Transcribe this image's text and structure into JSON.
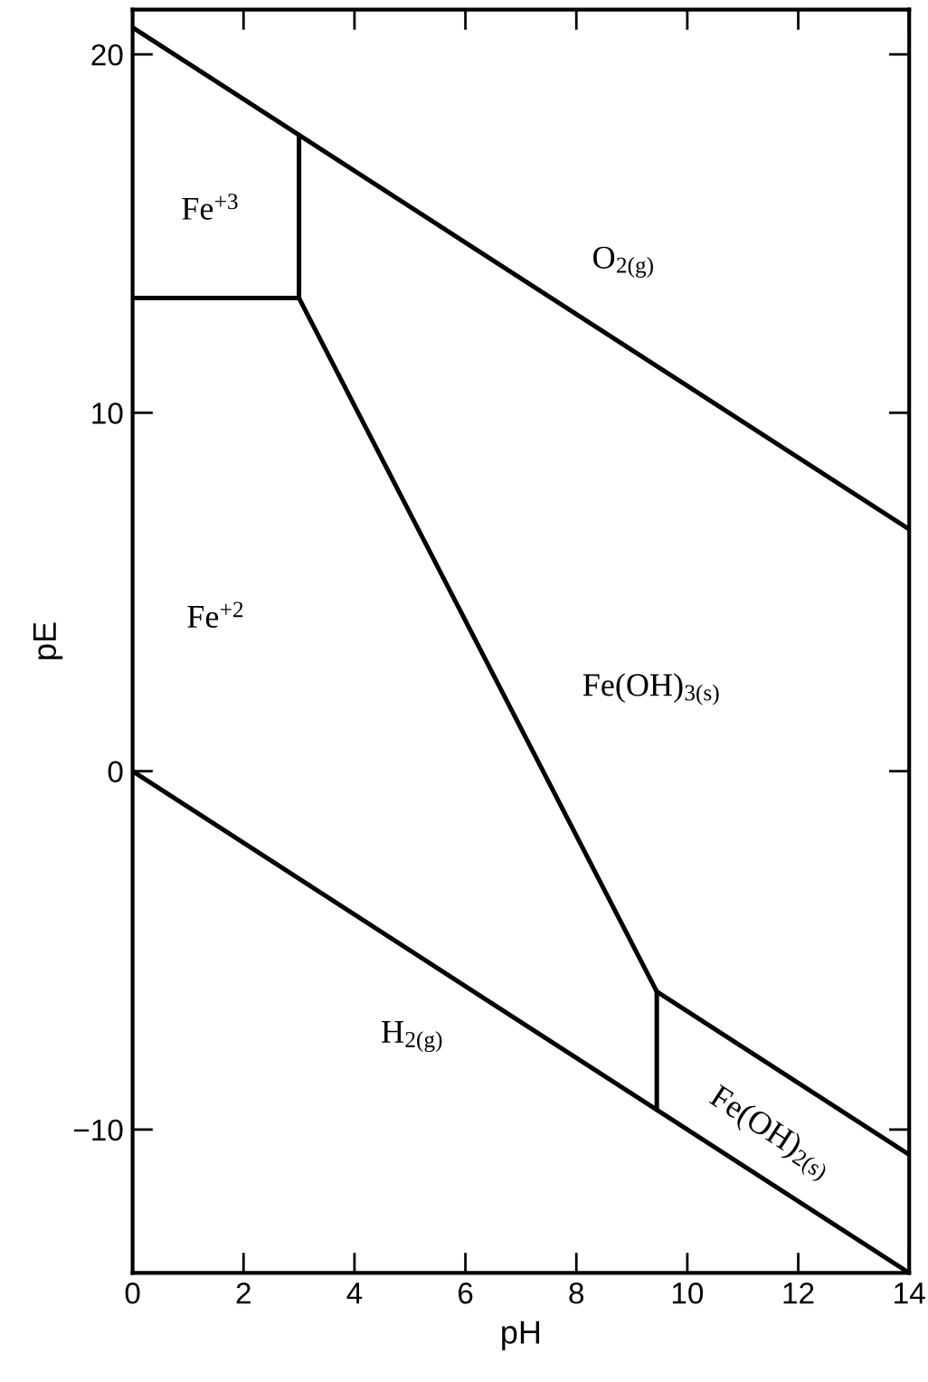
{
  "chart_data": {
    "type": "line",
    "xlabel": "pH",
    "ylabel": "pE",
    "xlim": [
      0,
      14
    ],
    "ylim": [
      -14,
      21.25
    ],
    "xticks": [
      0,
      2,
      4,
      6,
      8,
      10,
      12,
      14
    ],
    "yticks": [
      -10,
      0,
      10,
      20
    ],
    "grid": false,
    "legend": false,
    "series": [
      {
        "color": "#000000",
        "x": [
          0,
          14
        ],
        "values": [
          20.75,
          6.75
        ]
      },
      {
        "color": "#000000",
        "x": [
          0,
          14
        ],
        "values": [
          0,
          -14
        ]
      },
      {
        "color": "#000000",
        "x": [
          0,
          3.0
        ],
        "values": [
          13.2,
          13.2
        ]
      },
      {
        "color": "#000000",
        "x": [
          3.0,
          3.0
        ],
        "values": [
          13.2,
          17.75
        ]
      },
      {
        "color": "#000000",
        "x": [
          3.0,
          9.45
        ],
        "values": [
          13.2,
          -6.15
        ]
      },
      {
        "color": "#000000",
        "x": [
          9.45,
          9.45
        ],
        "values": [
          -6.15,
          -9.45
        ]
      },
      {
        "color": "#000000",
        "x": [
          9.45,
          14
        ],
        "values": [
          -6.15,
          -10.7
        ]
      }
    ],
    "annotations": [
      "Fe$^{+3}$",
      "O$_{2(g)}$",
      "Fe$^{+2}$",
      "Fe(OH)$_{3(s)}$",
      "H$_{2(g)}$",
      "Fe(OH)$_{2(s)}$"
    ]
  }
}
